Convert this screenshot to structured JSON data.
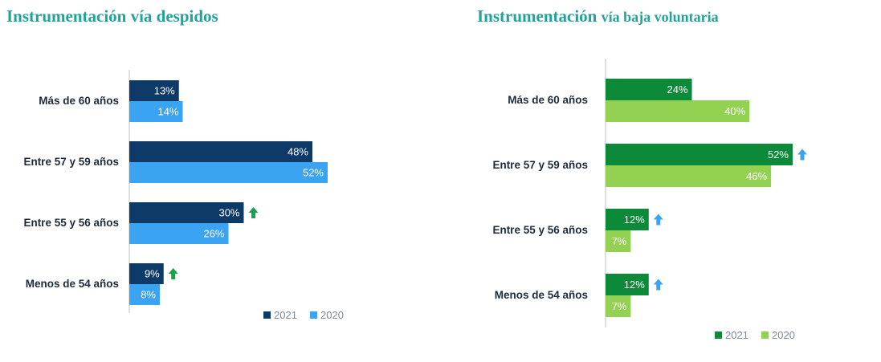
{
  "colors": {
    "title": "#1fa39a",
    "left_2021": "#0d3a67",
    "left_2020": "#3aa3f2",
    "left_arrow": "#16a34a",
    "right_2021": "#0c8a3a",
    "right_2020": "#93d152",
    "right_arrow": "#3aa3f2"
  },
  "chart_data": [
    {
      "type": "bar",
      "orientation": "horizontal",
      "title": "Instrumentación vía despidos",
      "categories": [
        "Más de 60 años",
        "Entre 57 y 59 años",
        "Entre 55 y 56 años",
        "Menos de 54 años"
      ],
      "series": [
        {
          "name": "2021",
          "values": [
            13,
            48,
            30,
            9
          ],
          "labels": [
            "13%",
            "48%",
            "30%",
            "9%"
          ]
        },
        {
          "name": "2020",
          "values": [
            14,
            52,
            26,
            8
          ],
          "labels": [
            "14%",
            "52%",
            "26%",
            "8%"
          ]
        }
      ],
      "increase_markers": [
        false,
        false,
        true,
        true
      ],
      "xlim": [
        0,
        100
      ],
      "unit": "%",
      "legend": "bottom-right",
      "grid": false
    },
    {
      "type": "bar",
      "orientation": "horizontal",
      "title": "Instrumentación",
      "title_suffix": "vía baja voluntaria",
      "categories": [
        "Más de 60 años",
        "Entre 57 y 59 años",
        "Entre 55 y 56 años",
        "Menos de 54 años"
      ],
      "series": [
        {
          "name": "2021",
          "values": [
            24,
            52,
            12,
            12
          ],
          "labels": [
            "24%",
            "52%",
            "12%",
            "12%"
          ]
        },
        {
          "name": "2020",
          "values": [
            40,
            46,
            7,
            7
          ],
          "labels": [
            "40%",
            "46%",
            "7%",
            "7%"
          ]
        }
      ],
      "increase_markers": [
        false,
        true,
        true,
        true
      ],
      "xlim": [
        0,
        100
      ],
      "unit": "%",
      "legend": "bottom-right",
      "grid": false
    }
  ]
}
